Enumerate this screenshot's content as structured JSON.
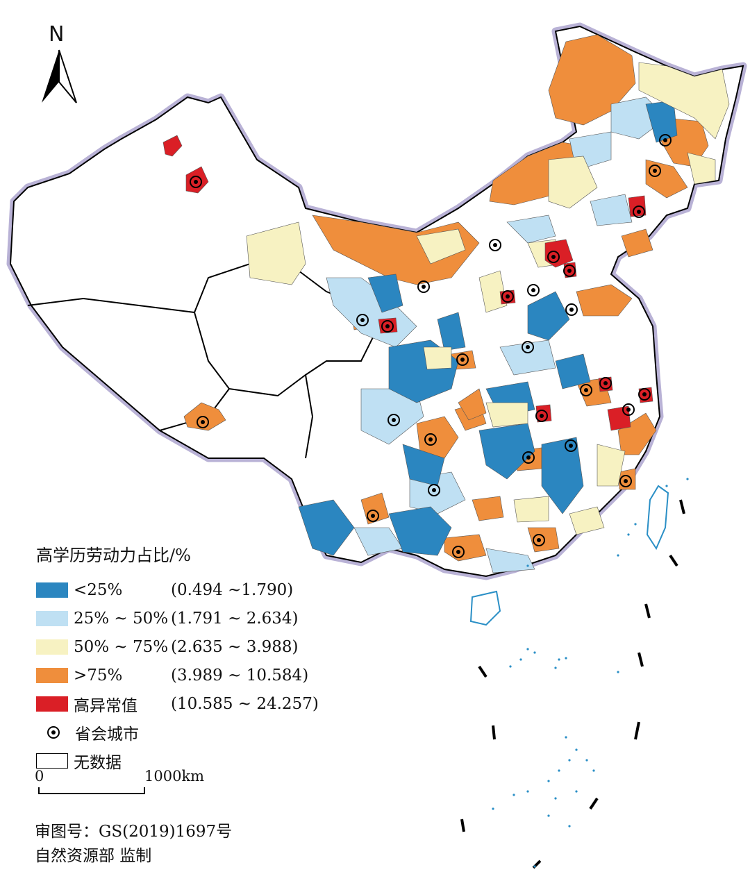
{
  "map": {
    "north_label": "N",
    "boundary_color": "#b9b2d6",
    "legend": {
      "title": "高学历劳动力占比/%",
      "classes": [
        {
          "label": "<25%",
          "range": "(0.494 ~1.790)",
          "color": "#2b86c0"
        },
        {
          "label": "25% ~ 50%",
          "range": "(1.791 ~ 2.634)",
          "color": "#bfe0f3"
        },
        {
          "label": "50% ~ 75%",
          "range": "(2.635 ~ 3.988)",
          "color": "#f7f2c2"
        },
        {
          "label": ">75%",
          "range": "(3.989 ~ 10.584)",
          "color": "#ef8e3c"
        },
        {
          "label": "高异常值",
          "range": "(10.585 ~ 24.257)",
          "color": "#da1f26"
        }
      ],
      "capital_label": "省会城市",
      "no_data_label": "无数据"
    },
    "scale": {
      "zero": "0",
      "max": "1000km"
    },
    "review_number": "审图号：GS(2019)1697号",
    "supervisor": "自然资源部  监制"
  }
}
